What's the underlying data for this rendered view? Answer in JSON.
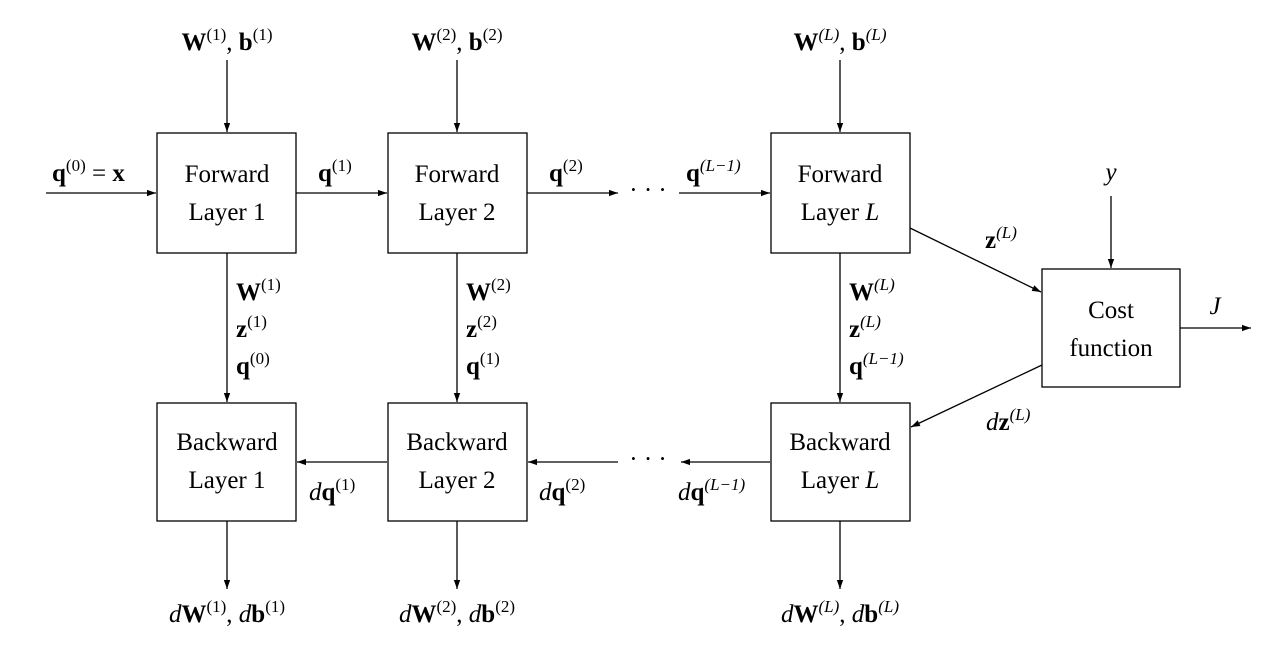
{
  "diagram": {
    "forward": [
      {
        "line1": "Forward",
        "line2": "Layer 1"
      },
      {
        "line1": "Forward",
        "line2": "Layer 2"
      },
      {
        "line1": "Forward",
        "line2": "Layer ",
        "line2_var": "L"
      }
    ],
    "backward": [
      {
        "line1": "Backward",
        "line2": "Layer 1"
      },
      {
        "line1": "Backward",
        "line2": "Layer 2"
      },
      {
        "line1": "Backward",
        "line2": "Layer ",
        "line2_var": "L"
      }
    ],
    "cost": {
      "line1": "Cost",
      "line2": "function"
    },
    "params": [
      {
        "W": "W",
        "b": "b",
        "sup": "(1)"
      },
      {
        "W": "W",
        "b": "b",
        "sup": "(2)"
      },
      {
        "W": "W",
        "b": "b",
        "sup": "(L)"
      }
    ],
    "grads": [
      {
        "d": "d",
        "W": "W",
        "b": "b",
        "sup": "(1)"
      },
      {
        "d": "d",
        "W": "W",
        "b": "b",
        "sup": "(2)"
      },
      {
        "d": "d",
        "W": "W",
        "b": "b",
        "sup": "(L)"
      }
    ],
    "cache": [
      {
        "W": "W",
        "Wsup": "(1)",
        "z": "z",
        "zsup": "(1)",
        "q": "q",
        "qsup": "(0)"
      },
      {
        "W": "W",
        "Wsup": "(2)",
        "z": "z",
        "zsup": "(2)",
        "q": "q",
        "qsup": "(1)"
      },
      {
        "W": "W",
        "Wsup": "(L)",
        "z": "z",
        "zsup": "(L)",
        "q": "q",
        "qsup": "(L−1)"
      }
    ],
    "input": {
      "q": "q",
      "sup": "(0)",
      "eq": " = ",
      "x": "x"
    },
    "q_forward": [
      {
        "q": "q",
        "sup": "(1)"
      },
      {
        "q": "q",
        "sup": "(2)"
      },
      {
        "q": "q",
        "sup": "(L−1)"
      }
    ],
    "dq_backward": [
      {
        "d": "d",
        "q": "q",
        "sup": "(1)"
      },
      {
        "d": "d",
        "q": "q",
        "sup": "(2)"
      },
      {
        "d": "d",
        "q": "q",
        "sup": "(L−1)"
      }
    ],
    "z_out": {
      "z": "z",
      "sup": "(L)"
    },
    "dz_in": {
      "d": "d",
      "z": "z",
      "sup": "(L)"
    },
    "y": "y",
    "J": "J",
    "ellipsis": "· · ·"
  }
}
